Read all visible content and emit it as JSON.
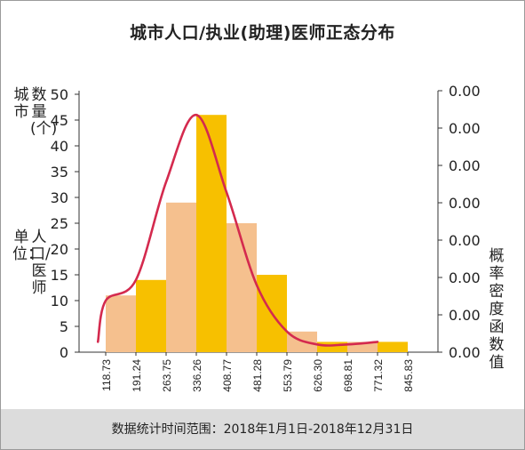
{
  "chart_data": {
    "type": "bar",
    "title": "城市人口/执业(助理)医师正态分布",
    "ylabel": "城市数量(个)",
    "ylabel_unit": "单位：人口/医师",
    "y2label": "概率密度函数值",
    "x_ticks": [
      "118.73",
      "191.24",
      "263.75",
      "336.26",
      "408.77",
      "481.28",
      "553.79",
      "626.30",
      "698.81",
      "771.32",
      "845.83"
    ],
    "values": [
      11,
      14,
      29,
      46,
      25,
      15,
      4,
      2,
      2,
      2
    ],
    "bar_colors": [
      "#f5c08e",
      "#f7c000",
      "#f5c08e",
      "#f7c000",
      "#f5c08e",
      "#f7c000",
      "#f5c08e",
      "#f7c000",
      "#f5c08e",
      "#f7c000"
    ],
    "curve_color": "#d42a4e",
    "ylim": [
      0,
      50
    ],
    "y_ticks": [
      0,
      5,
      10,
      15,
      20,
      25,
      30,
      35,
      40,
      45,
      50
    ],
    "y2_ticks": [
      "0.00",
      "0.00",
      "0.00",
      "0.00",
      "0.00",
      "0.00",
      "0.00",
      "0.00"
    ],
    "curve": [
      {
        "x": 100,
        "y": 2
      },
      {
        "x": 118.73,
        "y": 10
      },
      {
        "x": 191.24,
        "y": 14
      },
      {
        "x": 263.75,
        "y": 33
      },
      {
        "x": 336.26,
        "y": 46
      },
      {
        "x": 408.77,
        "y": 31
      },
      {
        "x": 481.28,
        "y": 13
      },
      {
        "x": 553.79,
        "y": 4
      },
      {
        "x": 626.3,
        "y": 1.5
      },
      {
        "x": 698.81,
        "y": 1.5
      },
      {
        "x": 771.32,
        "y": 2
      }
    ]
  },
  "footer": "数据统计时间范围：2018年1月1日-2018年12月31日"
}
